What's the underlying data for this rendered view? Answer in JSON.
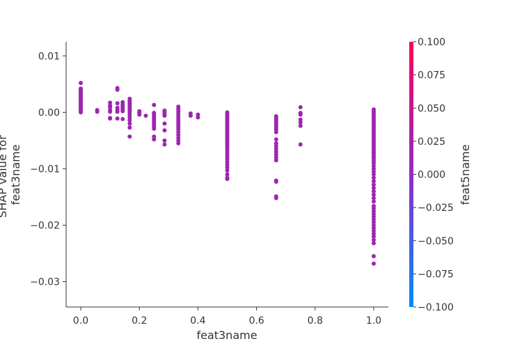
{
  "chart_data": {
    "type": "scatter",
    "title": "",
    "xlabel": "feat3name",
    "ylabel": [
      "SHAP value for",
      "feat3name"
    ],
    "xlim": [
      -0.05,
      1.05
    ],
    "ylim": [
      -0.0345,
      0.0125
    ],
    "xticks": [
      0.0,
      0.2,
      0.4,
      0.6,
      0.8,
      1.0
    ],
    "xtick_labels": [
      "0.0",
      "0.2",
      "0.4",
      "0.6",
      "0.8",
      "1.0"
    ],
    "yticks": [
      0.01,
      0.0,
      -0.01,
      -0.02,
      -0.03
    ],
    "ytick_labels": [
      "0.01",
      "0.00",
      "−0.01",
      "−0.02",
      "−0.03"
    ],
    "grid": false,
    "point_color": "#9d26b0",
    "colorbar": {
      "label": "feat5name",
      "range": [
        -0.1,
        0.1
      ],
      "ticks": [
        0.1,
        0.075,
        0.05,
        0.025,
        0.0,
        -0.025,
        -0.05,
        -0.075,
        -0.1
      ],
      "tick_labels": [
        "0.100",
        "0.075",
        "0.050",
        "0.025",
        "0.000",
        "−0.025",
        "−0.050",
        "−0.075",
        "−0.100"
      ],
      "color_top": "#ff0052",
      "color_mid": "#8e2ec8",
      "color_bottom": "#008bfb"
    },
    "points": [
      {
        "x": 0.0,
        "y": 0.0052
      },
      {
        "x": 0.0,
        "y": 0.0042
      },
      {
        "x": 0.0,
        "y": 0.004
      },
      {
        "x": 0.0,
        "y": 0.0038
      },
      {
        "x": 0.0,
        "y": 0.0036
      },
      {
        "x": 0.0,
        "y": 0.0034
      },
      {
        "x": 0.0,
        "y": 0.0032
      },
      {
        "x": 0.0,
        "y": 0.003
      },
      {
        "x": 0.0,
        "y": 0.0028
      },
      {
        "x": 0.0,
        "y": 0.0026
      },
      {
        "x": 0.0,
        "y": 0.0024
      },
      {
        "x": 0.0,
        "y": 0.0022
      },
      {
        "x": 0.0,
        "y": 0.002
      },
      {
        "x": 0.0,
        "y": 0.0018
      },
      {
        "x": 0.0,
        "y": 0.0016
      },
      {
        "x": 0.0,
        "y": 0.0014
      },
      {
        "x": 0.0,
        "y": 0.0012
      },
      {
        "x": 0.0,
        "y": 0.001
      },
      {
        "x": 0.0,
        "y": 0.0008
      },
      {
        "x": 0.0,
        "y": 0.0006
      },
      {
        "x": 0.0,
        "y": 0.0004
      },
      {
        "x": 0.0,
        "y": 0.0002
      },
      {
        "x": 0.0,
        "y": 0.0
      },
      {
        "x": 0.056,
        "y": 0.0004
      },
      {
        "x": 0.056,
        "y": 0.0001
      },
      {
        "x": 0.1,
        "y": 0.0017
      },
      {
        "x": 0.1,
        "y": 0.0012
      },
      {
        "x": 0.1,
        "y": 0.0009
      },
      {
        "x": 0.1,
        "y": 0.0004
      },
      {
        "x": 0.1,
        "y": 0.0001
      },
      {
        "x": 0.1,
        "y": -0.001
      },
      {
        "x": 0.1,
        "y": -0.0011
      },
      {
        "x": 0.125,
        "y": 0.0043
      },
      {
        "x": 0.125,
        "y": 0.004
      },
      {
        "x": 0.125,
        "y": 0.0016
      },
      {
        "x": 0.125,
        "y": 0.0008
      },
      {
        "x": 0.125,
        "y": 0.0004
      },
      {
        "x": 0.125,
        "y": 0.0001
      },
      {
        "x": 0.125,
        "y": -0.0011
      },
      {
        "x": 0.143,
        "y": 0.0018
      },
      {
        "x": 0.143,
        "y": 0.0014
      },
      {
        "x": 0.143,
        "y": 0.0011
      },
      {
        "x": 0.143,
        "y": 0.0008
      },
      {
        "x": 0.143,
        "y": 0.0005
      },
      {
        "x": 0.143,
        "y": 0.0002
      },
      {
        "x": 0.143,
        "y": -0.0012
      },
      {
        "x": 0.167,
        "y": 0.0024
      },
      {
        "x": 0.167,
        "y": 0.0021
      },
      {
        "x": 0.167,
        "y": 0.0018
      },
      {
        "x": 0.167,
        "y": 0.0015
      },
      {
        "x": 0.167,
        "y": 0.0012
      },
      {
        "x": 0.167,
        "y": 0.0009
      },
      {
        "x": 0.167,
        "y": 0.0006
      },
      {
        "x": 0.167,
        "y": 0.0003
      },
      {
        "x": 0.167,
        "y": 0.0
      },
      {
        "x": 0.167,
        "y": -0.0004
      },
      {
        "x": 0.167,
        "y": -0.0009
      },
      {
        "x": 0.167,
        "y": -0.0014
      },
      {
        "x": 0.167,
        "y": -0.002
      },
      {
        "x": 0.167,
        "y": -0.0027
      },
      {
        "x": 0.167,
        "y": -0.0043
      },
      {
        "x": 0.2,
        "y": 0.0002
      },
      {
        "x": 0.2,
        "y": -0.0001
      },
      {
        "x": 0.2,
        "y": -0.0004
      },
      {
        "x": 0.222,
        "y": -0.0006
      },
      {
        "x": 0.25,
        "y": 0.0013
      },
      {
        "x": 0.25,
        "y": -0.0001
      },
      {
        "x": 0.25,
        "y": -0.0004
      },
      {
        "x": 0.25,
        "y": -0.0007
      },
      {
        "x": 0.25,
        "y": -0.001
      },
      {
        "x": 0.25,
        "y": -0.0013
      },
      {
        "x": 0.25,
        "y": -0.0016
      },
      {
        "x": 0.25,
        "y": -0.0019
      },
      {
        "x": 0.25,
        "y": -0.0022
      },
      {
        "x": 0.25,
        "y": -0.0025
      },
      {
        "x": 0.25,
        "y": -0.0029
      },
      {
        "x": 0.25,
        "y": -0.0043
      },
      {
        "x": 0.25,
        "y": -0.0048
      },
      {
        "x": 0.286,
        "y": 0.0003
      },
      {
        "x": 0.286,
        "y": 0.0
      },
      {
        "x": 0.286,
        "y": -0.0003
      },
      {
        "x": 0.286,
        "y": -0.0006
      },
      {
        "x": 0.286,
        "y": -0.002
      },
      {
        "x": 0.286,
        "y": -0.0032
      },
      {
        "x": 0.286,
        "y": -0.005
      },
      {
        "x": 0.286,
        "y": -0.0057
      },
      {
        "x": 0.333,
        "y": 0.001
      },
      {
        "x": 0.333,
        "y": 0.0006
      },
      {
        "x": 0.333,
        "y": 0.0002
      },
      {
        "x": 0.333,
        "y": -0.0002
      },
      {
        "x": 0.333,
        "y": -0.0006
      },
      {
        "x": 0.333,
        "y": -0.001
      },
      {
        "x": 0.333,
        "y": -0.0014
      },
      {
        "x": 0.333,
        "y": -0.0018
      },
      {
        "x": 0.333,
        "y": -0.0022
      },
      {
        "x": 0.333,
        "y": -0.0026
      },
      {
        "x": 0.333,
        "y": -0.003
      },
      {
        "x": 0.333,
        "y": -0.0035
      },
      {
        "x": 0.333,
        "y": -0.004
      },
      {
        "x": 0.333,
        "y": -0.0045
      },
      {
        "x": 0.333,
        "y": -0.005
      },
      {
        "x": 0.333,
        "y": -0.0055
      },
      {
        "x": 0.375,
        "y": -0.0002
      },
      {
        "x": 0.375,
        "y": -0.0006
      },
      {
        "x": 0.4,
        "y": -0.0004
      },
      {
        "x": 0.4,
        "y": -0.0009
      },
      {
        "x": 0.5,
        "y": 0.0
      },
      {
        "x": 0.5,
        "y": -0.0003
      },
      {
        "x": 0.5,
        "y": -0.0006
      },
      {
        "x": 0.5,
        "y": -0.0009
      },
      {
        "x": 0.5,
        "y": -0.0012
      },
      {
        "x": 0.5,
        "y": -0.0015
      },
      {
        "x": 0.5,
        "y": -0.0018
      },
      {
        "x": 0.5,
        "y": -0.0021
      },
      {
        "x": 0.5,
        "y": -0.0024
      },
      {
        "x": 0.5,
        "y": -0.0027
      },
      {
        "x": 0.5,
        "y": -0.003
      },
      {
        "x": 0.5,
        "y": -0.0033
      },
      {
        "x": 0.5,
        "y": -0.0036
      },
      {
        "x": 0.5,
        "y": -0.0039
      },
      {
        "x": 0.5,
        "y": -0.0042
      },
      {
        "x": 0.5,
        "y": -0.0045
      },
      {
        "x": 0.5,
        "y": -0.0048
      },
      {
        "x": 0.5,
        "y": -0.0051
      },
      {
        "x": 0.5,
        "y": -0.0054
      },
      {
        "x": 0.5,
        "y": -0.0057
      },
      {
        "x": 0.5,
        "y": -0.006
      },
      {
        "x": 0.5,
        "y": -0.0063
      },
      {
        "x": 0.5,
        "y": -0.0067
      },
      {
        "x": 0.5,
        "y": -0.0071
      },
      {
        "x": 0.5,
        "y": -0.0075
      },
      {
        "x": 0.5,
        "y": -0.0079
      },
      {
        "x": 0.5,
        "y": -0.0083
      },
      {
        "x": 0.5,
        "y": -0.0088
      },
      {
        "x": 0.5,
        "y": -0.0093
      },
      {
        "x": 0.5,
        "y": -0.0098
      },
      {
        "x": 0.5,
        "y": -0.0103
      },
      {
        "x": 0.5,
        "y": -0.011
      },
      {
        "x": 0.5,
        "y": -0.0116
      },
      {
        "x": 0.5,
        "y": -0.0118
      },
      {
        "x": 0.667,
        "y": -0.0007
      },
      {
        "x": 0.667,
        "y": -0.001
      },
      {
        "x": 0.667,
        "y": -0.0013
      },
      {
        "x": 0.667,
        "y": -0.0016
      },
      {
        "x": 0.667,
        "y": -0.0019
      },
      {
        "x": 0.667,
        "y": -0.0022
      },
      {
        "x": 0.667,
        "y": -0.0025
      },
      {
        "x": 0.667,
        "y": -0.0028
      },
      {
        "x": 0.667,
        "y": -0.0031
      },
      {
        "x": 0.667,
        "y": -0.0035
      },
      {
        "x": 0.667,
        "y": -0.0048
      },
      {
        "x": 0.667,
        "y": -0.0055
      },
      {
        "x": 0.667,
        "y": -0.006
      },
      {
        "x": 0.667,
        "y": -0.0065
      },
      {
        "x": 0.667,
        "y": -0.007
      },
      {
        "x": 0.667,
        "y": -0.0075
      },
      {
        "x": 0.667,
        "y": -0.008
      },
      {
        "x": 0.667,
        "y": -0.0085
      },
      {
        "x": 0.667,
        "y": -0.0121
      },
      {
        "x": 0.667,
        "y": -0.0123
      },
      {
        "x": 0.667,
        "y": -0.0149
      },
      {
        "x": 0.667,
        "y": -0.0152
      },
      {
        "x": 0.75,
        "y": 0.0009
      },
      {
        "x": 0.75,
        "y": -0.0001
      },
      {
        "x": 0.75,
        "y": -0.0004
      },
      {
        "x": 0.75,
        "y": -0.0013
      },
      {
        "x": 0.75,
        "y": -0.0018
      },
      {
        "x": 0.75,
        "y": -0.0024
      },
      {
        "x": 0.75,
        "y": -0.0057
      },
      {
        "x": 1.0,
        "y": 0.0005
      },
      {
        "x": 1.0,
        "y": 0.0002
      },
      {
        "x": 1.0,
        "y": -0.0001
      },
      {
        "x": 1.0,
        "y": -0.0004
      },
      {
        "x": 1.0,
        "y": -0.0007
      },
      {
        "x": 1.0,
        "y": -0.001
      },
      {
        "x": 1.0,
        "y": -0.0013
      },
      {
        "x": 1.0,
        "y": -0.0016
      },
      {
        "x": 1.0,
        "y": -0.0019
      },
      {
        "x": 1.0,
        "y": -0.0022
      },
      {
        "x": 1.0,
        "y": -0.0025
      },
      {
        "x": 1.0,
        "y": -0.0028
      },
      {
        "x": 1.0,
        "y": -0.0031
      },
      {
        "x": 1.0,
        "y": -0.0034
      },
      {
        "x": 1.0,
        "y": -0.0037
      },
      {
        "x": 1.0,
        "y": -0.004
      },
      {
        "x": 1.0,
        "y": -0.0043
      },
      {
        "x": 1.0,
        "y": -0.0046
      },
      {
        "x": 1.0,
        "y": -0.0049
      },
      {
        "x": 1.0,
        "y": -0.0052
      },
      {
        "x": 1.0,
        "y": -0.0055
      },
      {
        "x": 1.0,
        "y": -0.0058
      },
      {
        "x": 1.0,
        "y": -0.0061
      },
      {
        "x": 1.0,
        "y": -0.0064
      },
      {
        "x": 1.0,
        "y": -0.0067
      },
      {
        "x": 1.0,
        "y": -0.007
      },
      {
        "x": 1.0,
        "y": -0.0073
      },
      {
        "x": 1.0,
        "y": -0.0076
      },
      {
        "x": 1.0,
        "y": -0.0079
      },
      {
        "x": 1.0,
        "y": -0.0082
      },
      {
        "x": 1.0,
        "y": -0.0086
      },
      {
        "x": 1.0,
        "y": -0.009
      },
      {
        "x": 1.0,
        "y": -0.0095
      },
      {
        "x": 1.0,
        "y": -0.01
      },
      {
        "x": 1.0,
        "y": -0.0105
      },
      {
        "x": 1.0,
        "y": -0.011
      },
      {
        "x": 1.0,
        "y": -0.0116
      },
      {
        "x": 1.0,
        "y": -0.0122
      },
      {
        "x": 1.0,
        "y": -0.0128
      },
      {
        "x": 1.0,
        "y": -0.0134
      },
      {
        "x": 1.0,
        "y": -0.014
      },
      {
        "x": 1.0,
        "y": -0.0146
      },
      {
        "x": 1.0,
        "y": -0.0152
      },
      {
        "x": 1.0,
        "y": -0.0158
      },
      {
        "x": 1.0,
        "y": -0.0166
      },
      {
        "x": 1.0,
        "y": -0.017
      },
      {
        "x": 1.0,
        "y": -0.0175
      },
      {
        "x": 1.0,
        "y": -0.018
      },
      {
        "x": 1.0,
        "y": -0.0185
      },
      {
        "x": 1.0,
        "y": -0.019
      },
      {
        "x": 1.0,
        "y": -0.0195
      },
      {
        "x": 1.0,
        "y": -0.02
      },
      {
        "x": 1.0,
        "y": -0.0205
      },
      {
        "x": 1.0,
        "y": -0.021
      },
      {
        "x": 1.0,
        "y": -0.0215
      },
      {
        "x": 1.0,
        "y": -0.022
      },
      {
        "x": 1.0,
        "y": -0.0226
      },
      {
        "x": 1.0,
        "y": -0.0232
      },
      {
        "x": 1.0,
        "y": -0.0255
      },
      {
        "x": 1.0,
        "y": -0.0268
      }
    ]
  }
}
